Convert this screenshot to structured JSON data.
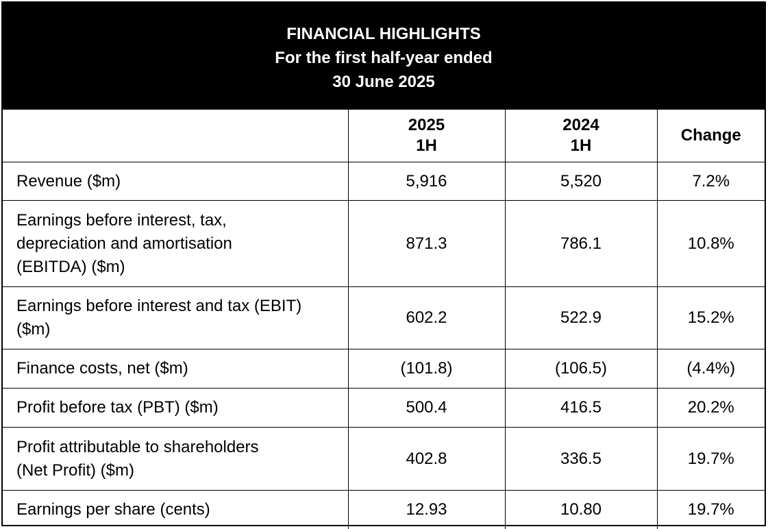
{
  "title": {
    "line1": "FINANCIAL HIGHLIGHTS",
    "line2": "For the first half-year ended",
    "line3": "30 June 2025"
  },
  "columns": {
    "label": "",
    "current": {
      "year": "2025",
      "period": "1H"
    },
    "prior": {
      "year": "2024",
      "period": "1H"
    },
    "change": "Change"
  },
  "rows": [
    {
      "label_lines": [
        "Revenue ($m)"
      ],
      "current": "5,916",
      "prior": "5,520",
      "change": "7.2%"
    },
    {
      "label_lines": [
        "Earnings before interest, tax,",
        "depreciation and amortisation",
        "(EBITDA) ($m)"
      ],
      "current": "871.3",
      "prior": "786.1",
      "change": "10.8%"
    },
    {
      "label_lines": [
        "Earnings before interest and tax (EBIT)",
        "($m)"
      ],
      "current": "602.2",
      "prior": "522.9",
      "change": "15.2%"
    },
    {
      "label_lines": [
        "Finance costs, net ($m)"
      ],
      "current": "(101.8)",
      "prior": "(106.5)",
      "change": "(4.4%)"
    },
    {
      "label_lines": [
        "Profit before tax (PBT) ($m)"
      ],
      "current": "500.4",
      "prior": "416.5",
      "change": "20.2%"
    },
    {
      "label_lines": [
        "Profit attributable to shareholders",
        "(Net Profit) ($m)"
      ],
      "current": "402.8",
      "prior": "336.5",
      "change": "19.7%"
    },
    {
      "label_lines": [
        "Earnings per share (cents)"
      ],
      "current": "12.93",
      "prior": "10.80",
      "change": "19.7%"
    }
  ],
  "colors": {
    "header_background": "#000000",
    "header_text": "#ffffff",
    "border": "#000000"
  }
}
